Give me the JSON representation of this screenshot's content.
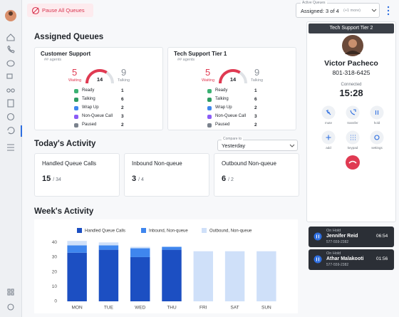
{
  "top_bar": {
    "pause_button": "Pause All Queues",
    "active_queues_label": "Active Queues",
    "active_queues_value": "Assigned: 3 of 4",
    "active_queues_more": "(+1 more)"
  },
  "assigned_queues": {
    "title": "Assigned Queues",
    "queues": [
      {
        "name": "Customer Support",
        "agents": "## agents",
        "waiting": 5,
        "waiting_label": "Waiting",
        "total": 14,
        "talking": 9,
        "talking_label": "Talking",
        "statuses": [
          {
            "label": "Ready",
            "count": 1
          },
          {
            "label": "Talking",
            "count": 6
          },
          {
            "label": "Wrap Up",
            "count": 2
          },
          {
            "label": "Non-Queue Call",
            "count": 3
          },
          {
            "label": "Paused",
            "count": 2
          }
        ]
      },
      {
        "name": "Tech Support Tier 1",
        "agents": "## agents",
        "waiting": 5,
        "waiting_label": "Waiting",
        "total": 14,
        "talking": 9,
        "talking_label": "Talking",
        "statuses": [
          {
            "label": "Ready",
            "count": 1
          },
          {
            "label": "Talking",
            "count": 6
          },
          {
            "label": "Wrap Up",
            "count": 2
          },
          {
            "label": "Non-Queue Call",
            "count": 3
          },
          {
            "label": "Paused",
            "count": 2
          }
        ]
      }
    ]
  },
  "todays_activity": {
    "title": "Today's Activity",
    "compare_label": "Compare to",
    "compare_value": "Yesterday",
    "cards": [
      {
        "label": "Handled Queue Calls",
        "value": 15,
        "total_label": "/ 34"
      },
      {
        "label": "Inbound Non-queue",
        "value": 3,
        "total_label": "/ 4"
      },
      {
        "label": "Outbound Non-queue",
        "value": 6,
        "total_label": "/ 2"
      }
    ]
  },
  "chart_data": {
    "type": "bar",
    "stacked": true,
    "title": "Week's Activity",
    "categories": [
      "MON",
      "TUE",
      "WED",
      "THU",
      "FRI",
      "SAT",
      "SUN"
    ],
    "series": [
      {
        "name": "Handled Queue Calls",
        "color": "#1c4fc2",
        "values": [
          33,
          35,
          30,
          35,
          null,
          null,
          null
        ]
      },
      {
        "name": "Inbound, Non-queue",
        "color": "#3f86ee",
        "values": [
          5,
          3,
          6,
          2,
          null,
          null,
          null
        ]
      },
      {
        "name": "Outbound, Non-queue",
        "color": "#cfe0f9",
        "values": [
          3,
          2,
          1,
          null,
          34,
          34,
          34
        ]
      }
    ],
    "ylim": [
      0,
      44
    ],
    "yticks": [
      0,
      10,
      20,
      30,
      40
    ],
    "grid": false
  },
  "call": {
    "queue": "Tech Support Tier 2",
    "name": "Victor Pacheco",
    "phone": "801-318-6425",
    "status": "Connected",
    "duration": "15:28",
    "controls": [
      "mute",
      "transfer",
      "hold",
      "add",
      "keypad",
      "settings"
    ]
  },
  "on_hold": [
    {
      "status": "On Hold",
      "name": "Jennifer Reid",
      "time": "06:54",
      "phone": "577-559-2382"
    },
    {
      "status": "On Hold",
      "name": "Athar Malakooti",
      "time": "01:56",
      "phone": "577-559-2382"
    }
  ]
}
